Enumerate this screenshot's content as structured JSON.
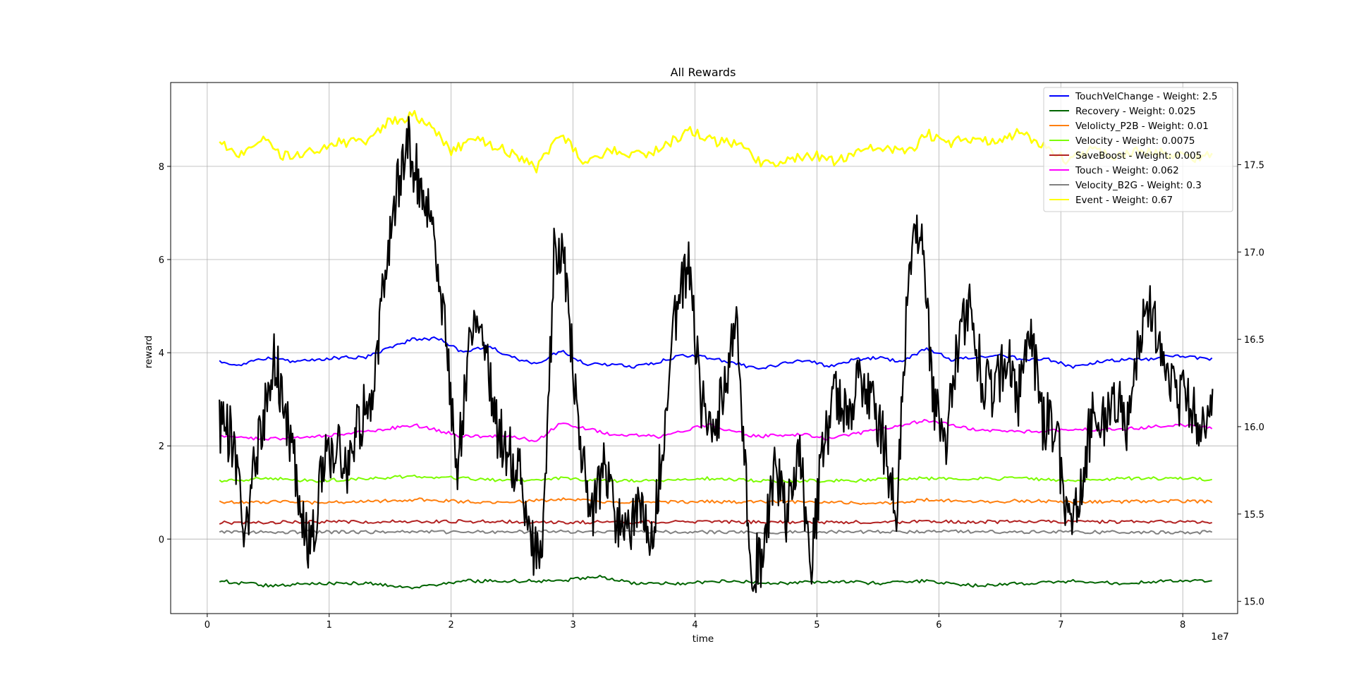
{
  "chart_data": {
    "type": "line",
    "title": "All Rewards",
    "xlabel": "time",
    "ylabel": "reward",
    "x_offset_label": "1e7",
    "xlim": [
      -0.3,
      8.45
    ],
    "ylim": [
      -1.6,
      9.8
    ],
    "y2lim": [
      14.93,
      17.97
    ],
    "x_ticks": [
      "0",
      "1",
      "2",
      "3",
      "4",
      "5",
      "6",
      "7",
      "8"
    ],
    "y_ticks": [
      "0",
      "2",
      "4",
      "6",
      "8"
    ],
    "y2_ticks": [
      "15.0",
      "15.5",
      "16.0",
      "16.5",
      "17.0",
      "17.5"
    ],
    "grid": true,
    "legend_position": "top-right",
    "series": [
      {
        "name": "TouchVelChange - Weight: 2.5",
        "color": "#0000ff",
        "axis": "left",
        "x": [
          0.1,
          0.3,
          0.5,
          0.7,
          0.9,
          1.1,
          1.3,
          1.5,
          1.7,
          1.9,
          2.1,
          2.3,
          2.5,
          2.7,
          2.9,
          3.1,
          3.3,
          3.5,
          3.7,
          3.9,
          4.1,
          4.3,
          4.5,
          4.7,
          4.9,
          5.1,
          5.3,
          5.5,
          5.7,
          5.9,
          6.1,
          6.3,
          6.5,
          6.7,
          6.9,
          7.1,
          7.3,
          7.5,
          7.7,
          7.9,
          8.1,
          8.25
        ],
        "values": [
          3.8,
          3.75,
          3.9,
          3.8,
          3.85,
          3.9,
          3.9,
          4.1,
          4.3,
          4.3,
          4.0,
          4.15,
          3.9,
          3.75,
          4.05,
          3.75,
          3.75,
          3.7,
          3.8,
          3.95,
          3.9,
          3.8,
          3.65,
          3.75,
          3.85,
          3.7,
          3.85,
          3.9,
          3.8,
          4.1,
          3.85,
          3.9,
          3.95,
          3.85,
          3.85,
          3.7,
          3.8,
          3.85,
          3.85,
          3.95,
          3.9,
          3.85
        ]
      },
      {
        "name": "Recovery - Weight: 0.025",
        "color": "#006400",
        "axis": "left",
        "x": [
          0.1,
          0.5,
          0.9,
          1.3,
          1.7,
          2.1,
          2.5,
          2.9,
          3.2,
          3.5,
          3.9,
          4.3,
          4.7,
          5.1,
          5.5,
          5.9,
          6.3,
          6.7,
          7.1,
          7.5,
          7.9,
          8.25
        ],
        "values": [
          -0.9,
          -1.0,
          -0.95,
          -0.95,
          -1.05,
          -0.9,
          -0.9,
          -0.9,
          -0.8,
          -0.95,
          -0.95,
          -0.9,
          -0.95,
          -0.9,
          -0.95,
          -0.9,
          -1.0,
          -0.95,
          -0.9,
          -0.95,
          -0.9,
          -0.9
        ]
      },
      {
        "name": "Velolicty_P2B - Weight: 0.01",
        "color": "#ff7f0e",
        "axis": "left",
        "x": [
          0.1,
          0.5,
          0.9,
          1.3,
          1.7,
          2.1,
          2.5,
          2.9,
          3.3,
          3.7,
          4.1,
          4.5,
          4.9,
          5.3,
          5.7,
          5.9,
          6.3,
          6.7,
          7.1,
          7.5,
          7.9,
          8.25
        ],
        "values": [
          0.8,
          0.8,
          0.78,
          0.8,
          0.85,
          0.8,
          0.8,
          0.85,
          0.8,
          0.8,
          0.8,
          0.8,
          0.8,
          0.78,
          0.78,
          0.85,
          0.8,
          0.82,
          0.8,
          0.8,
          0.82,
          0.8
        ]
      },
      {
        "name": "Velocity - Weight: 0.0075",
        "color": "#7cfc00",
        "axis": "left",
        "x": [
          0.1,
          0.5,
          0.9,
          1.3,
          1.7,
          2.1,
          2.5,
          2.9,
          3.3,
          3.7,
          4.1,
          4.5,
          4.9,
          5.3,
          5.7,
          5.9,
          6.3,
          6.7,
          7.1,
          7.5,
          7.9,
          8.25
        ],
        "values": [
          1.25,
          1.3,
          1.25,
          1.3,
          1.35,
          1.3,
          1.25,
          1.3,
          1.25,
          1.25,
          1.3,
          1.25,
          1.25,
          1.25,
          1.3,
          1.3,
          1.3,
          1.3,
          1.25,
          1.3,
          1.3,
          1.28
        ]
      },
      {
        "name": "SaveBoost - Weight: 0.005",
        "color": "#b22222",
        "axis": "left",
        "x": [
          0.1,
          1.0,
          2.0,
          3.0,
          4.0,
          5.0,
          6.0,
          7.0,
          8.25
        ],
        "values": [
          0.35,
          0.37,
          0.38,
          0.36,
          0.37,
          0.36,
          0.37,
          0.37,
          0.37
        ]
      },
      {
        "name": "Touch - Weight: 0.062",
        "color": "#ff00ff",
        "axis": "left",
        "x": [
          0.1,
          0.5,
          0.9,
          1.3,
          1.7,
          2.1,
          2.5,
          2.7,
          2.9,
          3.3,
          3.7,
          4.1,
          4.5,
          4.9,
          5.1,
          5.5,
          5.9,
          6.3,
          6.7,
          7.1,
          7.5,
          7.9,
          8.25
        ],
        "values": [
          2.2,
          2.15,
          2.2,
          2.3,
          2.45,
          2.2,
          2.2,
          2.1,
          2.5,
          2.25,
          2.2,
          2.45,
          2.2,
          2.25,
          2.15,
          2.35,
          2.55,
          2.35,
          2.3,
          2.35,
          2.35,
          2.45,
          2.4
        ]
      },
      {
        "name": "Velocity_B2G - Weight: 0.3",
        "color": "#808080",
        "axis": "left",
        "x": [
          0.1,
          1.0,
          2.0,
          3.0,
          4.0,
          5.0,
          6.0,
          7.0,
          8.0,
          8.25
        ],
        "values": [
          0.15,
          0.15,
          0.15,
          0.16,
          0.15,
          0.15,
          0.16,
          0.15,
          0.14,
          0.15
        ]
      },
      {
        "name": "Event - Weight: 0.67",
        "color": "#ffff00",
        "axis": "right",
        "x": [
          0.1,
          0.25,
          0.45,
          0.6,
          0.75,
          0.95,
          1.1,
          1.3,
          1.5,
          1.7,
          1.85,
          2.0,
          2.2,
          2.45,
          2.7,
          2.9,
          3.1,
          3.3,
          3.5,
          3.7,
          3.95,
          4.15,
          4.35,
          4.55,
          4.75,
          5.0,
          5.15,
          5.4,
          5.6,
          5.75,
          5.9,
          6.05,
          6.25,
          6.45,
          6.65,
          6.85,
          7.05,
          7.25,
          7.45,
          7.65,
          7.9,
          8.1,
          8.25
        ],
        "values": [
          17.65,
          17.55,
          17.66,
          17.55,
          17.55,
          17.6,
          17.63,
          17.62,
          17.75,
          17.78,
          17.72,
          17.58,
          17.65,
          17.58,
          17.48,
          17.68,
          17.5,
          17.58,
          17.55,
          17.58,
          17.7,
          17.63,
          17.62,
          17.5,
          17.53,
          17.55,
          17.52,
          17.6,
          17.58,
          17.57,
          17.68,
          17.62,
          17.65,
          17.63,
          17.68,
          17.62,
          17.52,
          17.58,
          17.55,
          17.58,
          17.56,
          17.54,
          17.55
        ]
      },
      {
        "name": "",
        "color": "#000000",
        "axis": "left",
        "x": [
          0.1,
          0.2,
          0.3,
          0.45,
          0.55,
          0.65,
          0.75,
          0.85,
          0.95,
          1.05,
          1.15,
          1.25,
          1.35,
          1.45,
          1.55,
          1.65,
          1.75,
          1.85,
          1.95,
          2.05,
          2.15,
          2.25,
          2.35,
          2.45,
          2.55,
          2.65,
          2.75,
          2.85,
          2.95,
          3.05,
          3.15,
          3.25,
          3.35,
          3.45,
          3.55,
          3.65,
          3.75,
          3.85,
          3.95,
          4.05,
          4.15,
          4.25,
          4.35,
          4.45,
          4.55,
          4.65,
          4.75,
          4.85,
          4.95,
          5.05,
          5.15,
          5.25,
          5.35,
          5.45,
          5.55,
          5.65,
          5.75,
          5.85,
          5.95,
          6.05,
          6.15,
          6.25,
          6.35,
          6.45,
          6.55,
          6.65,
          6.75,
          6.85,
          6.95,
          7.05,
          7.15,
          7.25,
          7.35,
          7.45,
          7.55,
          7.65,
          7.75,
          7.85,
          7.95,
          8.05,
          8.15,
          8.25
        ],
        "values": [
          2.5,
          2.2,
          0.0,
          2.5,
          4.0,
          2.5,
          1.0,
          -0.3,
          1.5,
          2.0,
          1.5,
          2.5,
          3.0,
          5.5,
          7.5,
          8.5,
          7.5,
          7.0,
          4.5,
          1.5,
          4.0,
          5.0,
          2.5,
          2.0,
          1.5,
          0.0,
          -0.5,
          6.5,
          5.5,
          2.0,
          0.5,
          1.5,
          0.5,
          0.0,
          1.0,
          0.0,
          2.5,
          5.0,
          5.8,
          3.0,
          2.0,
          3.5,
          4.5,
          -0.5,
          -0.5,
          1.5,
          0.5,
          2.0,
          -0.5,
          2.0,
          3.0,
          2.5,
          3.5,
          3.0,
          2.0,
          0.5,
          5.5,
          7.0,
          3.0,
          2.0,
          4.0,
          5.0,
          3.5,
          3.0,
          4.0,
          3.0,
          4.5,
          2.5,
          2.5,
          0.5,
          1.0,
          2.5,
          2.5,
          3.0,
          2.5,
          4.5,
          5.0,
          3.5,
          3.0,
          3.0,
          2.5,
          3.0
        ]
      }
    ]
  }
}
